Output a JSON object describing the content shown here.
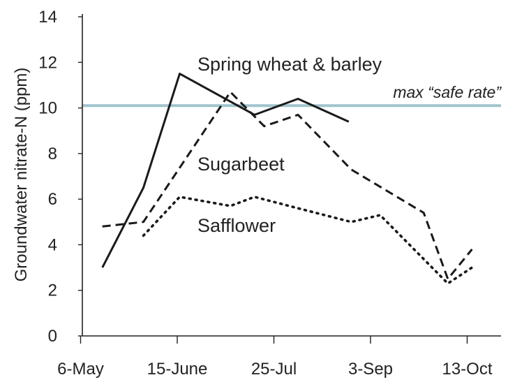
{
  "chart_data": {
    "type": "line",
    "xlabel": "",
    "ylabel": "Groundwater nitrate-N (ppm)",
    "ylim": [
      0,
      14
    ],
    "yticks": [
      0,
      2,
      4,
      6,
      8,
      10,
      12,
      14
    ],
    "xlim": [
      0,
      166
    ],
    "xticks": [
      {
        "label": "6-May",
        "day": 0
      },
      {
        "label": "15-June",
        "day": 40
      },
      {
        "label": "25-Jul",
        "day": 80
      },
      {
        "label": "3-Sep",
        "day": 120
      },
      {
        "label": "13-Oct",
        "day": 160
      }
    ],
    "reference_line": {
      "value": 10.1,
      "label": "max “safe rate”",
      "color": "#9fc4cc"
    },
    "series": [
      {
        "name": "Spring wheat & barley",
        "style": "solid",
        "x": [
          9,
          26,
          41,
          72,
          90,
          111
        ],
        "y": [
          3.0,
          6.5,
          11.5,
          9.7,
          10.4,
          9.4
        ]
      },
      {
        "name": "Sugarbeet",
        "style": "dashed",
        "x": [
          9,
          26,
          62,
          76,
          90,
          112,
          142,
          152,
          162
        ],
        "y": [
          4.8,
          5.0,
          10.7,
          9.2,
          9.7,
          7.3,
          5.4,
          2.5,
          3.8
        ]
      },
      {
        "name": "Safflower",
        "style": "dotted",
        "x": [
          26,
          41,
          62,
          72,
          90,
          112,
          124,
          152,
          162
        ],
        "y": [
          4.4,
          6.1,
          5.7,
          6.1,
          5.6,
          5.0,
          5.3,
          2.3,
          3.0
        ]
      }
    ]
  }
}
